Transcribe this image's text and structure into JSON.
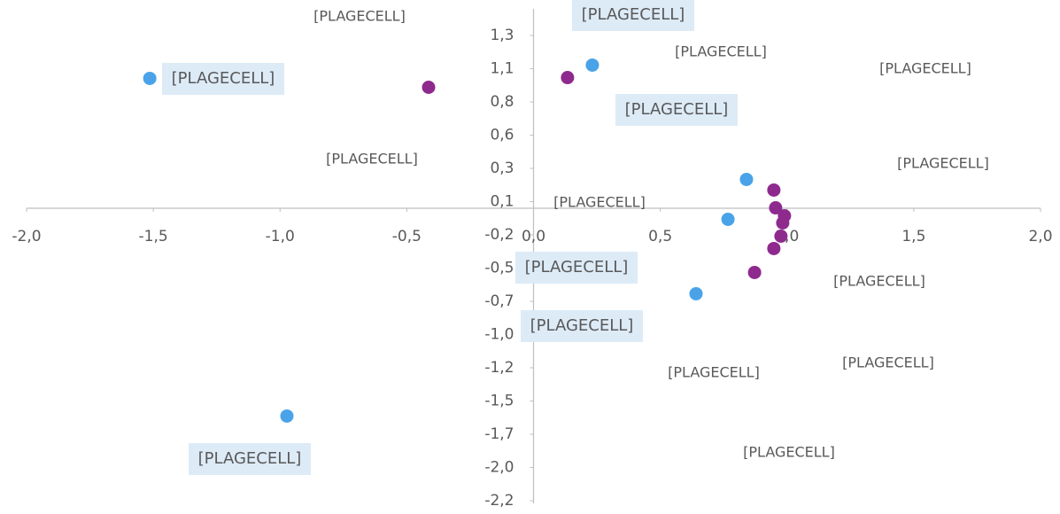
{
  "chart_data": {
    "type": "scatter",
    "xlim": [
      -2.0,
      2.0
    ],
    "ylim": [
      -2.22,
      1.5
    ],
    "xticks": [
      {
        "value": -2.0,
        "label": "-2,0"
      },
      {
        "value": -1.5,
        "label": "-1,5"
      },
      {
        "value": -1.0,
        "label": "-1,0"
      },
      {
        "value": -0.5,
        "label": "-0,5"
      },
      {
        "value": 0.0,
        "label": "0,0"
      },
      {
        "value": 0.5,
        "label": "0,5"
      },
      {
        "value": 1.0,
        "label": "1,0"
      },
      {
        "value": 1.5,
        "label": "1,5"
      },
      {
        "value": 2.0,
        "label": "2,0"
      }
    ],
    "yticks": [
      {
        "value": 1.3,
        "label": "1,3"
      },
      {
        "value": 1.05,
        "label": "1,1"
      },
      {
        "value": 0.8,
        "label": "0,8"
      },
      {
        "value": 0.55,
        "label": "0,6"
      },
      {
        "value": 0.3,
        "label": "0,3"
      },
      {
        "value": 0.05,
        "label": "0,1"
      },
      {
        "value": -0.2,
        "label": "-0,2"
      },
      {
        "value": -0.45,
        "label": "-0,5"
      },
      {
        "value": -0.7,
        "label": "-0,7"
      },
      {
        "value": -0.95,
        "label": "-1,0"
      },
      {
        "value": -1.2,
        "label": "-1,2"
      },
      {
        "value": -1.45,
        "label": "-1,5"
      },
      {
        "value": -1.7,
        "label": "-1,7"
      },
      {
        "value": -1.95,
        "label": "-2,0"
      },
      {
        "value": -2.2,
        "label": "-2,2"
      }
    ],
    "series": [
      {
        "color": "#4aa3e8",
        "x": [
          -1.514,
          0.232,
          0.84,
          0.767,
          0.641,
          -0.973
        ],
        "values": [
          0.977,
          1.077,
          0.217,
          -0.083,
          -0.643,
          -1.563
        ]
      },
      {
        "color": "#8e2a8e",
        "x": [
          -0.414,
          0.134,
          0.948,
          0.955,
          0.99,
          0.983,
          0.976,
          0.948,
          0.872
        ],
        "values": [
          0.91,
          0.983,
          0.137,
          0.003,
          -0.057,
          -0.11,
          -0.21,
          -0.303,
          -0.483
        ]
      }
    ],
    "annotations": [
      "[PLAGECELL]",
      "[PLAGECELL]",
      "[PLAGECELL]",
      "[PLAGECELL]",
      "[PLAGECELL]",
      "[PLAGECELL]",
      "[PLAGECELL]",
      "[PLAGECELL]",
      "[PLAGECELL]",
      "[PLAGECELL]",
      "[PLAGECELL]",
      "[PLAGECELL]",
      "[PLAGECELL]",
      "[PLAGECELL]",
      "[PLAGECELL]",
      "[PLAGECELL]"
    ]
  }
}
